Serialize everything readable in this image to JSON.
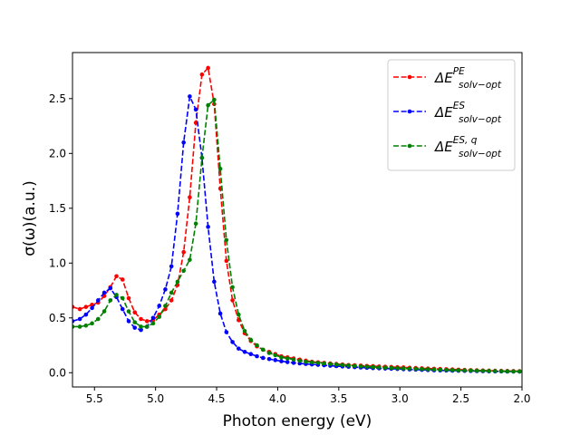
{
  "chart_data": {
    "type": "line",
    "title": "",
    "xlabel": "Photon energy (eV)",
    "ylabel": "σ(ω)(a.u.)",
    "xlim": [
      5.68,
      2.0
    ],
    "ylim": [
      -0.13,
      2.92
    ],
    "x_reversed": true,
    "grid": false,
    "legend_position": "top-right",
    "xticks": [
      5.5,
      5.0,
      4.5,
      4.0,
      3.5,
      3.0,
      2.5,
      2.0
    ],
    "xtick_labels": [
      "5.5",
      "5.0",
      "4.5",
      "4.0",
      "3.5",
      "3.0",
      "2.5",
      "2.0"
    ],
    "yticks": [
      0.0,
      0.5,
      1.0,
      1.5,
      2.0,
      2.5
    ],
    "ytick_labels": [
      "0.0",
      "0.5",
      "1.0",
      "1.5",
      "2.0",
      "2.5"
    ],
    "x": [
      5.68,
      5.62,
      5.57,
      5.52,
      5.47,
      5.42,
      5.37,
      5.32,
      5.27,
      5.22,
      5.17,
      5.12,
      5.07,
      5.02,
      4.97,
      4.92,
      4.87,
      4.82,
      4.77,
      4.72,
      4.67,
      4.62,
      4.57,
      4.52,
      4.47,
      4.42,
      4.37,
      4.32,
      4.27,
      4.22,
      4.17,
      4.12,
      4.07,
      4.02,
      3.97,
      3.92,
      3.87,
      3.82,
      3.77,
      3.72,
      3.67,
      3.62,
      3.57,
      3.52,
      3.47,
      3.42,
      3.37,
      3.32,
      3.27,
      3.22,
      3.17,
      3.12,
      3.07,
      3.02,
      2.97,
      2.92,
      2.87,
      2.82,
      2.77,
      2.72,
      2.67,
      2.62,
      2.57,
      2.52,
      2.47,
      2.42,
      2.37,
      2.32,
      2.27,
      2.22,
      2.17,
      2.12,
      2.07,
      2.02
    ],
    "series": [
      {
        "name": "ΔE^{PE}_{solv-opt}",
        "color": "#ff0000",
        "values": [
          0.6,
          0.58,
          0.6,
          0.62,
          0.64,
          0.7,
          0.78,
          0.88,
          0.85,
          0.68,
          0.55,
          0.49,
          0.47,
          0.48,
          0.53,
          0.58,
          0.66,
          0.8,
          1.1,
          1.6,
          2.28,
          2.72,
          2.78,
          2.45,
          1.68,
          1.02,
          0.66,
          0.48,
          0.36,
          0.29,
          0.24,
          0.21,
          0.19,
          0.17,
          0.15,
          0.14,
          0.13,
          0.12,
          0.11,
          0.1,
          0.095,
          0.09,
          0.085,
          0.08,
          0.075,
          0.07,
          0.068,
          0.065,
          0.062,
          0.06,
          0.057,
          0.055,
          0.052,
          0.05,
          0.048,
          0.045,
          0.043,
          0.04,
          0.038,
          0.036,
          0.034,
          0.032,
          0.03,
          0.028,
          0.026,
          0.024,
          0.022,
          0.02,
          0.019,
          0.018,
          0.017,
          0.016,
          0.015,
          0.014
        ]
      },
      {
        "name": "ΔE^{ES}_{solv-opt}",
        "color": "#0000ff",
        "values": [
          0.47,
          0.49,
          0.53,
          0.59,
          0.66,
          0.73,
          0.77,
          0.69,
          0.58,
          0.47,
          0.41,
          0.39,
          0.42,
          0.5,
          0.61,
          0.76,
          0.97,
          1.45,
          2.1,
          2.52,
          2.4,
          1.96,
          1.33,
          0.83,
          0.54,
          0.37,
          0.28,
          0.22,
          0.19,
          0.17,
          0.15,
          0.135,
          0.125,
          0.115,
          0.105,
          0.097,
          0.09,
          0.085,
          0.08,
          0.076,
          0.072,
          0.068,
          0.064,
          0.06,
          0.057,
          0.054,
          0.051,
          0.048,
          0.045,
          0.042,
          0.04,
          0.038,
          0.036,
          0.034,
          0.032,
          0.03,
          0.028,
          0.026,
          0.024,
          0.022,
          0.021,
          0.02,
          0.019,
          0.018,
          0.017,
          0.016,
          0.015,
          0.014,
          0.013,
          0.012,
          0.012,
          0.011,
          0.011,
          0.01
        ]
      },
      {
        "name": "ΔE^{ES,q}_{solv-opt}",
        "color": "#008000",
        "values": [
          0.42,
          0.42,
          0.43,
          0.45,
          0.49,
          0.56,
          0.66,
          0.71,
          0.68,
          0.56,
          0.46,
          0.42,
          0.42,
          0.45,
          0.51,
          0.61,
          0.73,
          0.83,
          0.93,
          1.03,
          1.36,
          1.96,
          2.44,
          2.49,
          1.86,
          1.21,
          0.78,
          0.53,
          0.38,
          0.3,
          0.25,
          0.21,
          0.18,
          0.16,
          0.14,
          0.13,
          0.12,
          0.11,
          0.1,
          0.095,
          0.09,
          0.085,
          0.08,
          0.075,
          0.07,
          0.066,
          0.062,
          0.058,
          0.055,
          0.052,
          0.049,
          0.046,
          0.044,
          0.041,
          0.039,
          0.037,
          0.035,
          0.033,
          0.031,
          0.029,
          0.027,
          0.025,
          0.024,
          0.022,
          0.021,
          0.02,
          0.018,
          0.017,
          0.016,
          0.015,
          0.014,
          0.013,
          0.012,
          0.012
        ]
      }
    ]
  },
  "legend": {
    "items": [
      {
        "main": "ΔE",
        "sup": "PE",
        "sub": "solv−opt",
        "color": "#ff0000"
      },
      {
        "main": "ΔE",
        "sup": "ES",
        "sub": "solv−opt",
        "color": "#0000ff"
      },
      {
        "main": "ΔE",
        "sup": "ES, q",
        "sub": "solv−opt",
        "color": "#008000"
      }
    ]
  }
}
